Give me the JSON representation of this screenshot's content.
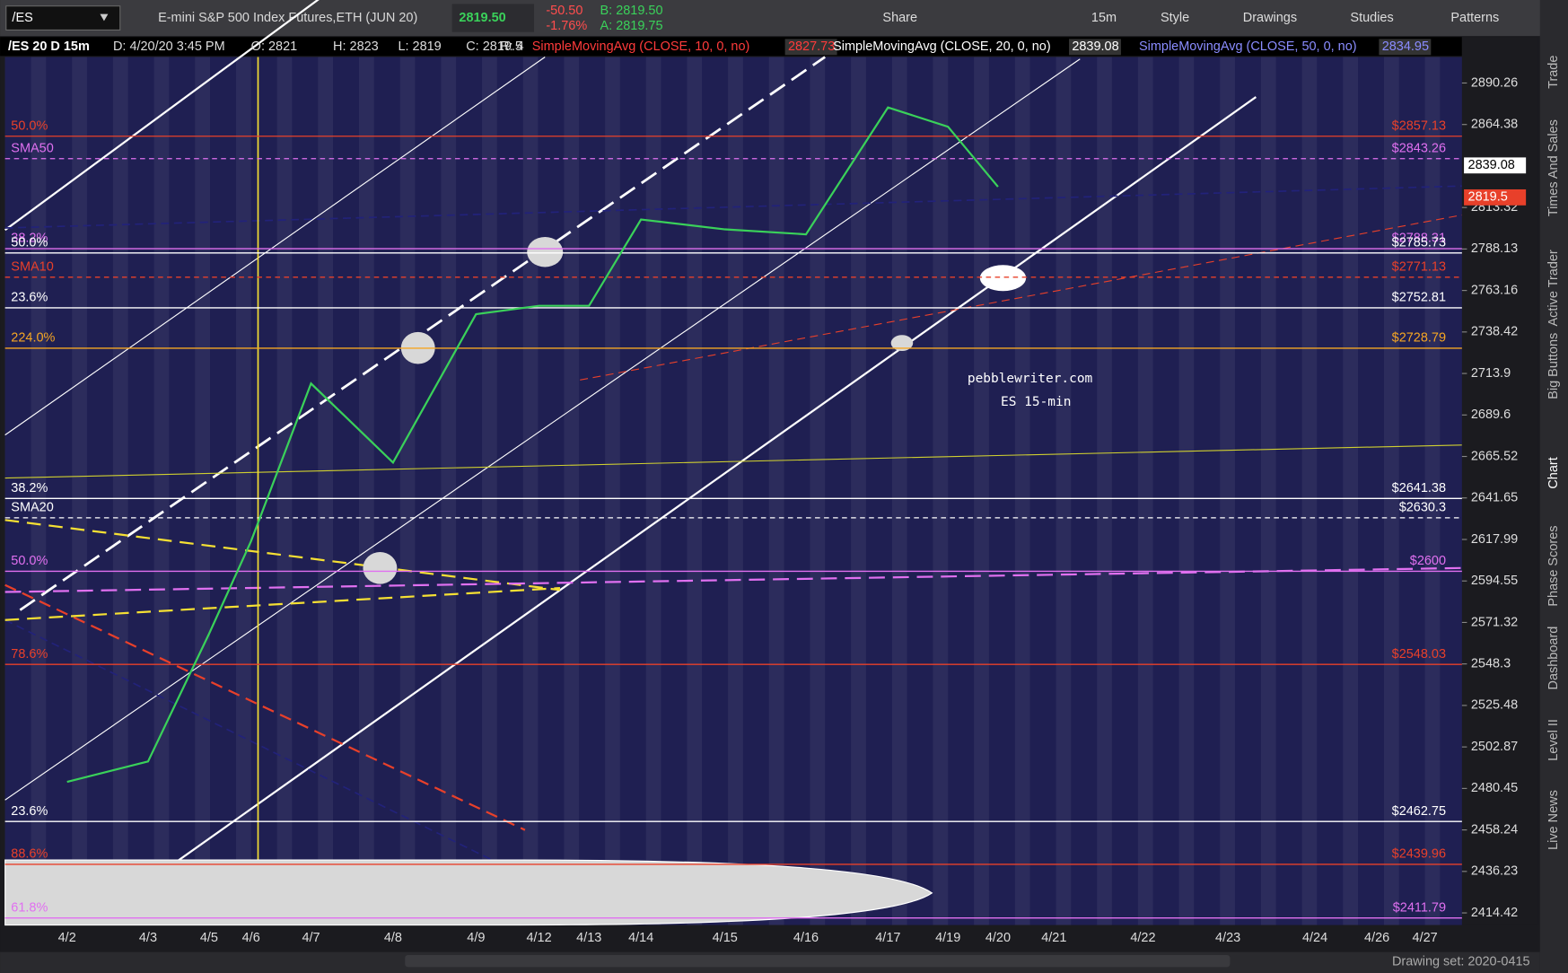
{
  "toolbar": {
    "symbol": "/ES",
    "description": "E-mini S&P 500 Index Futures,ETH (JUN 20)",
    "last": "2819.50",
    "change": "-50.50",
    "change_pct": "-1.76%",
    "bid": "B: 2819.50",
    "ask": "A: 2819.75",
    "buttons": [
      "Share",
      "15m",
      "Style",
      "Drawings",
      "Studies",
      "Patterns"
    ]
  },
  "chart_header": {
    "symbol": "/ES 20 D 15m",
    "fields": [
      "D: 4/20/20 3:45 PM",
      "O: 2821",
      "H: 2823",
      "L: 2819",
      "C: 2819.5",
      "R: 4"
    ],
    "studies": [
      {
        "name": "SimpleMovingAvg (CLOSE, 10, 0, no)",
        "value": "2827.73",
        "color": "#ff3b3b"
      },
      {
        "name": "SimpleMovingAvg (CLOSE, 20, 0, no)",
        "value": "2839.08",
        "color": "#ffffff"
      },
      {
        "name": "SimpleMovingAvg (CLOSE, 50, 0, no)",
        "value": "2834.95",
        "color": "#8a8cff"
      }
    ]
  },
  "chart_data": {
    "type": "line",
    "annotation": [
      "pebblewriter.com",
      "ES 15-min"
    ],
    "categories": [
      "4/2",
      "4/3",
      "4/5",
      "4/6",
      "4/7",
      "4/8",
      "4/9",
      "4/12",
      "4/13",
      "4/14",
      "4/15",
      "4/16",
      "4/17",
      "4/19",
      "4/20",
      "4/21",
      "4/22",
      "4/23",
      "4/24",
      "4/26",
      "4/27"
    ],
    "series": [
      {
        "color": "#3ad15a",
        "values": [
          2484,
          2495,
          2565,
          2617,
          2708,
          2662,
          2749,
          2754,
          2754,
          2806,
          2800,
          2797,
          2875,
          2863,
          2826,
          null,
          null,
          null,
          null,
          null,
          null
        ]
      }
    ],
    "log": true,
    "ylim": [
      2408.1,
      2906.6
    ],
    "yticks": [
      2890.26,
      2864.38,
      2813.32,
      2788.13,
      2763.16,
      2738.42,
      2713.9,
      2689.6,
      2665.52,
      2641.65,
      2617.99,
      2594.55,
      2571.32,
      2548.3,
      2525.48,
      2502.87,
      2480.45,
      2458.24,
      2436.23,
      2414.42
    ],
    "levels": [
      {
        "left": "50.0%",
        "price": 2857.13,
        "label": "$2857.13",
        "color": "#e8402a",
        "dash": false
      },
      {
        "left": "SMA50",
        "price": 2843.26,
        "label": "$2843.26",
        "color": "#e070f0",
        "dash": true
      },
      {
        "left": "38.2%",
        "price": 2788.31,
        "label": "$2788.31",
        "color": "#e070f0",
        "dash": false
      },
      {
        "left": "50.0%",
        "price": 2785.73,
        "label": "$2785.73",
        "color": "#ffffff",
        "dash": false
      },
      {
        "left": "SMA10",
        "price": 2771.13,
        "label": "$2771.13",
        "color": "#e8402a",
        "dash": true
      },
      {
        "left": "23.6%",
        "price": 2752.81,
        "label": "$2752.81",
        "color": "#ffffff",
        "dash": false
      },
      {
        "left": "224.0%",
        "price": 2728.79,
        "label": "$2728.79",
        "color": "#f5a623",
        "dash": false
      },
      {
        "left": "38.2%",
        "price": 2641.38,
        "label": "$2641.38",
        "color": "#ffffff",
        "dash": false
      },
      {
        "left": "SMA20",
        "price": 2630.3,
        "label": "$2630.3",
        "color": "#ffffff",
        "dash": true
      },
      {
        "left": "50.0%",
        "price": 2600,
        "label": "$2600",
        "color": "#e070f0",
        "dash": false
      },
      {
        "left": "78.6%",
        "price": 2548.03,
        "label": "$2548.03",
        "color": "#e8402a",
        "dash": false
      },
      {
        "left": "23.6%",
        "price": 2462.75,
        "label": "$2462.75",
        "color": "#ffffff",
        "dash": false
      },
      {
        "left": "88.6%",
        "price": 2439.96,
        "label": "$2439.96",
        "color": "#e8402a",
        "dash": false
      },
      {
        "left": "61.8%",
        "price": 2411.79,
        "label": "$2411.79",
        "color": "#e070f0",
        "dash": false
      }
    ],
    "price_tags": [
      {
        "value": 2839.08,
        "color": "#ffffff"
      },
      {
        "value": 2819.5,
        "color": "#e8402a"
      }
    ]
  },
  "sidebar": [
    "Trade",
    "Times And Sales",
    "Active Trader",
    "Big Buttons",
    "Chart",
    "Phase Scores",
    "Dashboard",
    "Level II",
    "Live News"
  ],
  "footer": "Drawing set: 2020-0415"
}
